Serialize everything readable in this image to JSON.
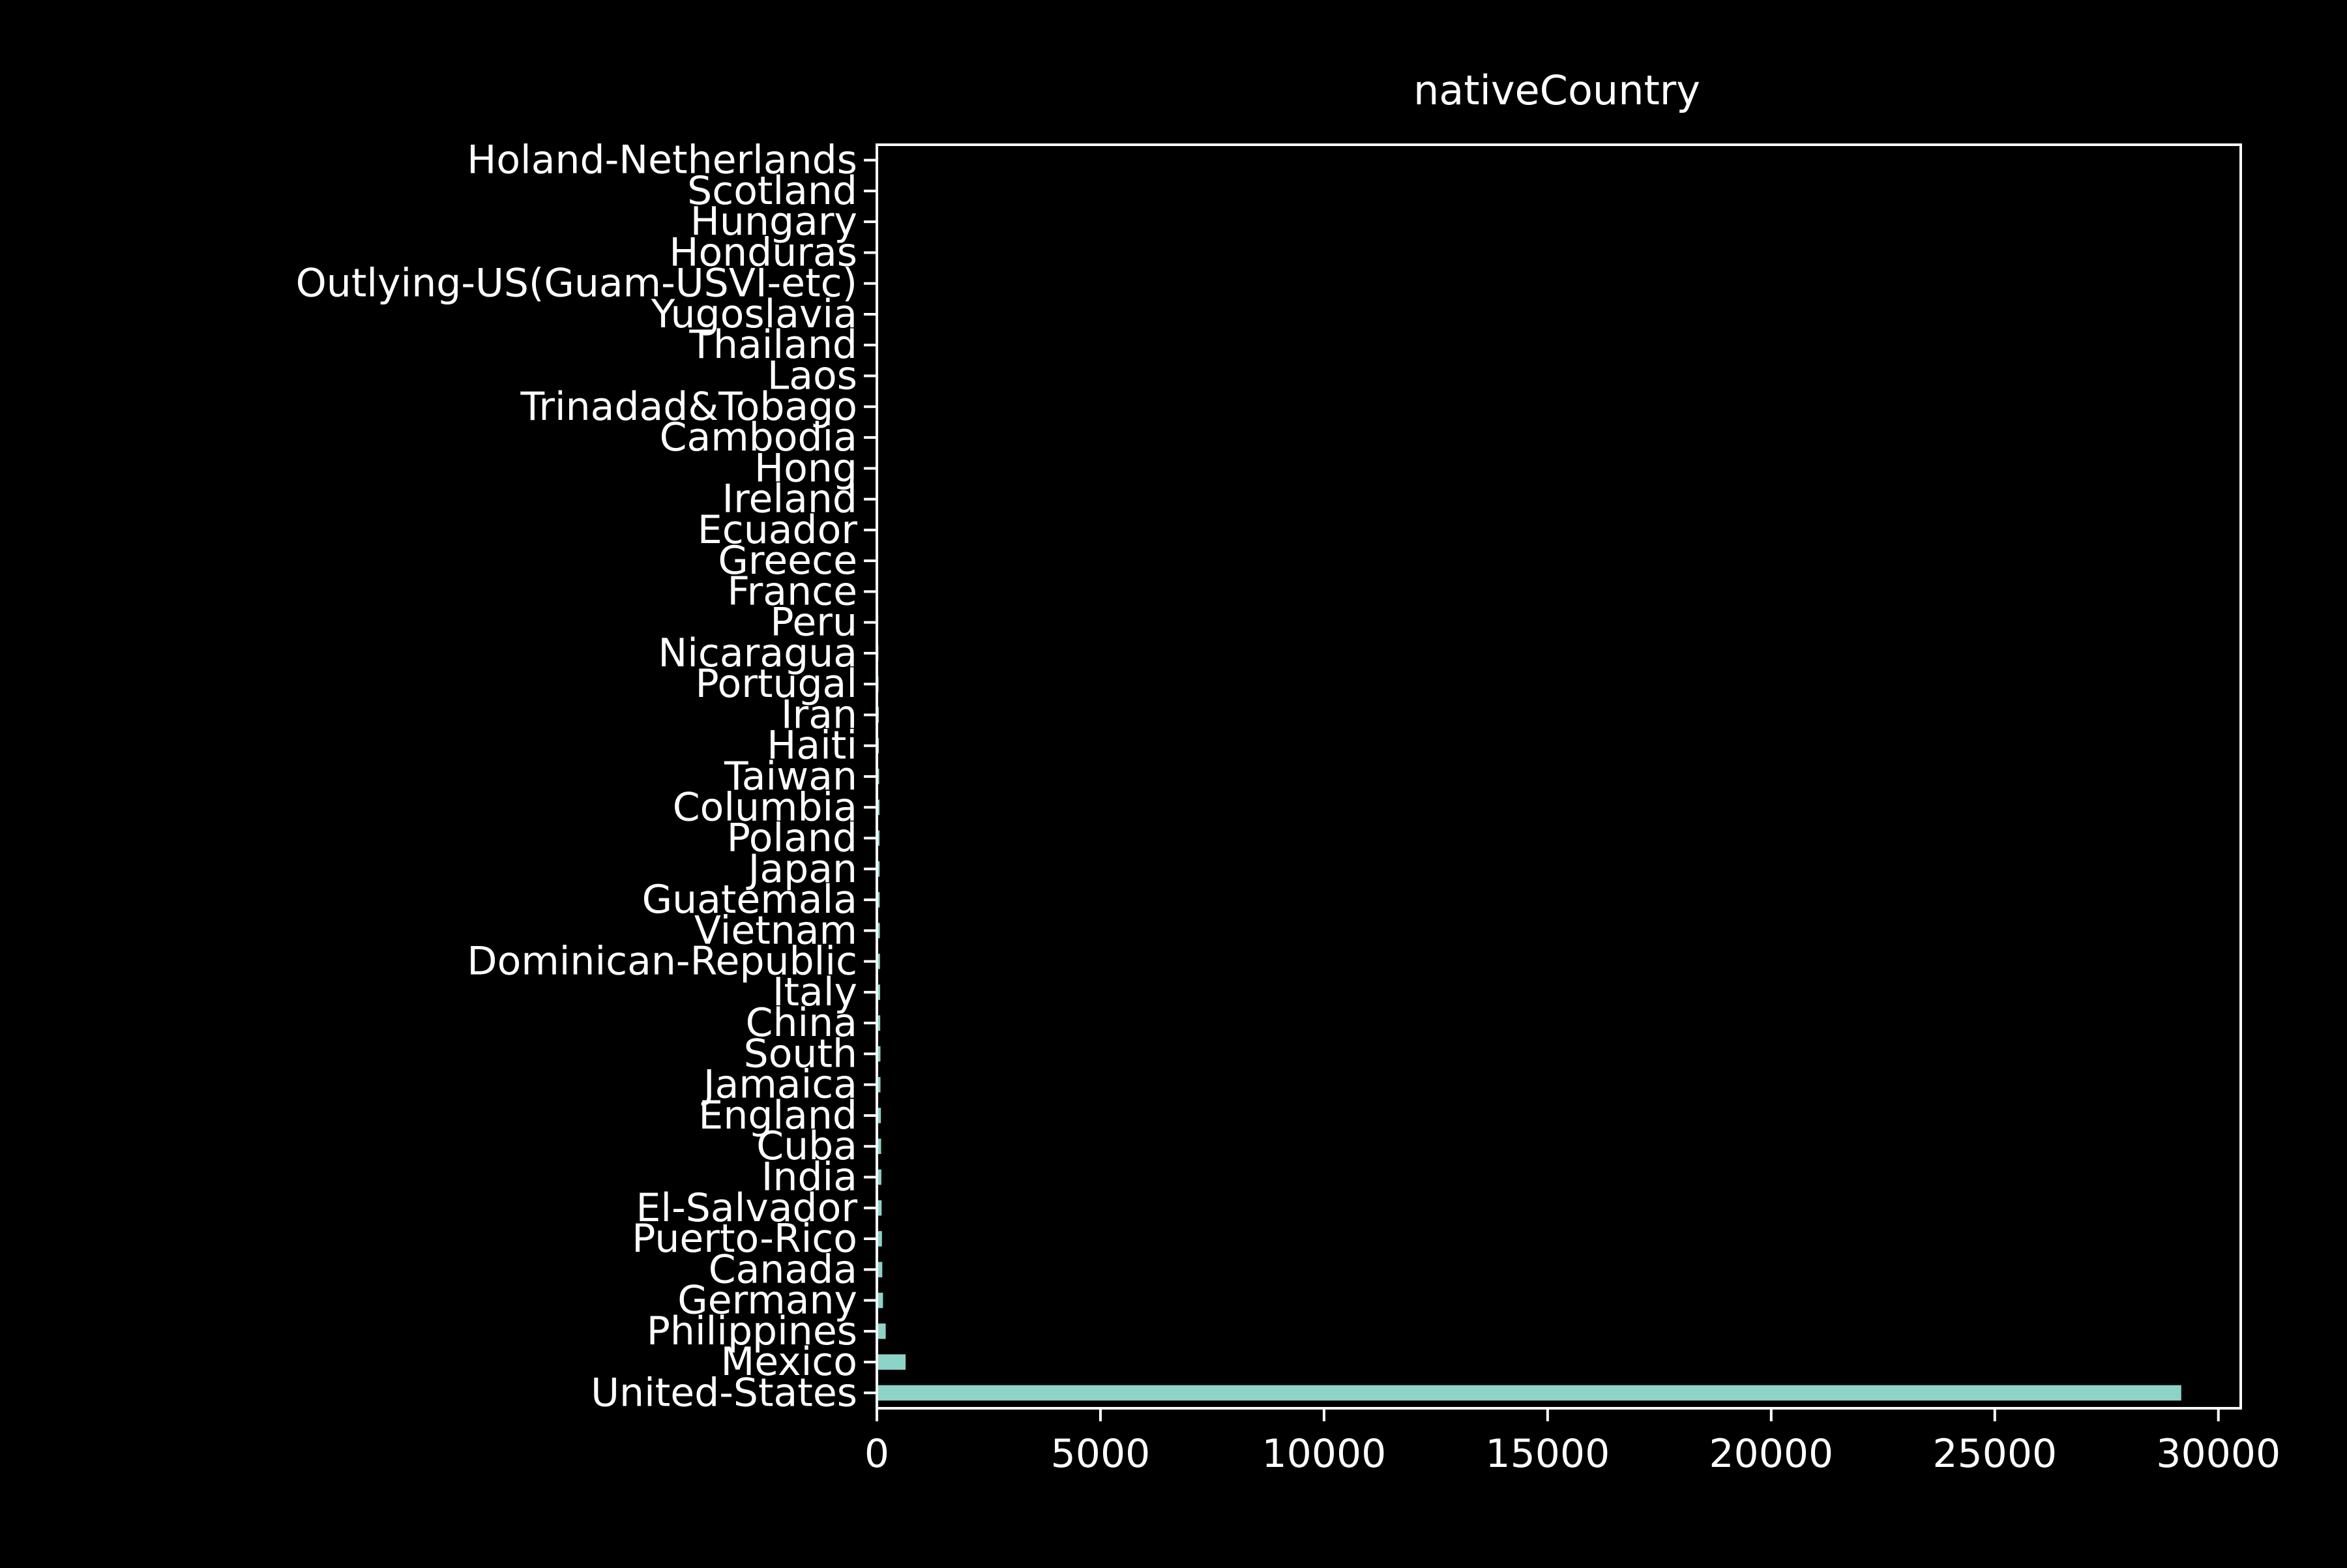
{
  "chart_data": {
    "type": "bar",
    "orientation": "horizontal",
    "title": "nativeCountry",
    "xlabel": "",
    "ylabel": "",
    "xlim": [
      0,
      30500
    ],
    "xticks": [
      0,
      5000,
      10000,
      15000,
      20000,
      25000,
      30000
    ],
    "grid": false,
    "categories": [
      "United-States",
      "Mexico",
      "Philippines",
      "Germany",
      "Canada",
      "Puerto-Rico",
      "El-Salvador",
      "India",
      "Cuba",
      "England",
      "Jamaica",
      "South",
      "China",
      "Italy",
      "Dominican-Republic",
      "Vietnam",
      "Guatemala",
      "Japan",
      "Poland",
      "Columbia",
      "Taiwan",
      "Haiti",
      "Iran",
      "Portugal",
      "Nicaragua",
      "Peru",
      "France",
      "Greece",
      "Ecuador",
      "Ireland",
      "Hong",
      "Cambodia",
      "Trinadad&Tobago",
      "Laos",
      "Thailand",
      "Yugoslavia",
      "Outlying-US(Guam-USVI-etc)",
      "Honduras",
      "Hungary",
      "Scotland",
      "Holand-Netherlands"
    ],
    "values": [
      29170,
      643,
      198,
      137,
      121,
      114,
      106,
      100,
      95,
      90,
      81,
      80,
      75,
      73,
      70,
      67,
      64,
      62,
      60,
      59,
      51,
      44,
      43,
      37,
      34,
      31,
      29,
      29,
      28,
      24,
      20,
      19,
      19,
      18,
      18,
      16,
      14,
      13,
      13,
      12,
      1
    ],
    "bar_color": "#8dd3c7",
    "axis_color": "#ffffff",
    "background": "#000000"
  }
}
